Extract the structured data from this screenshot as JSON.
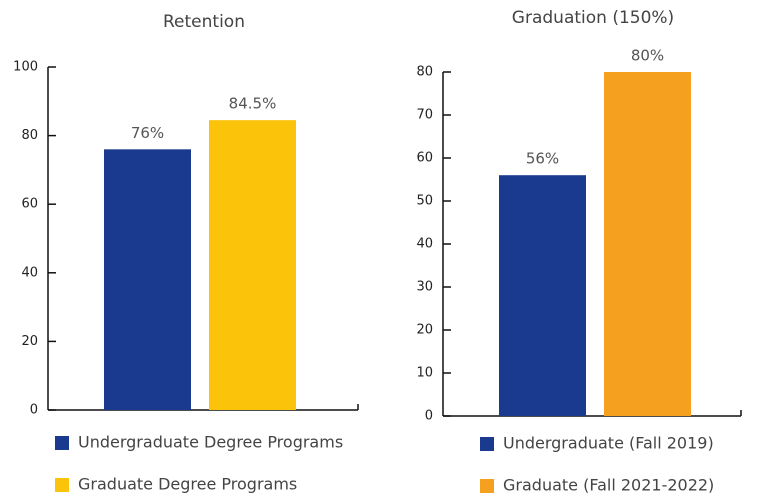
{
  "chart_data": [
    {
      "type": "bar",
      "title": "Retention",
      "series": [
        {
          "name": "Undergraduate Degree Programs",
          "color": "#1a3a8f",
          "values": [
            76
          ],
          "value_labels": [
            "76%"
          ]
        },
        {
          "name": "Graduate Degree Programs",
          "color": "#fcc30b",
          "values": [
            84.5
          ],
          "value_labels": [
            "84.5%"
          ]
        }
      ],
      "ylim": [
        0,
        100
      ],
      "yticks": [
        0,
        20,
        40,
        60,
        80,
        100
      ]
    },
    {
      "type": "bar",
      "title": "Graduation (150%)",
      "series": [
        {
          "name": "Undergraduate (Fall 2019)",
          "color": "#1a3a8f",
          "values": [
            56
          ],
          "value_labels": [
            "56%"
          ]
        },
        {
          "name": "Graduate (Fall 2021-2022)",
          "color": "#f5a01e",
          "values": [
            80
          ],
          "value_labels": [
            "80%"
          ]
        }
      ],
      "ylim": [
        0,
        80
      ],
      "yticks": [
        0,
        10,
        20,
        30,
        40,
        50,
        60,
        70,
        80
      ]
    }
  ]
}
